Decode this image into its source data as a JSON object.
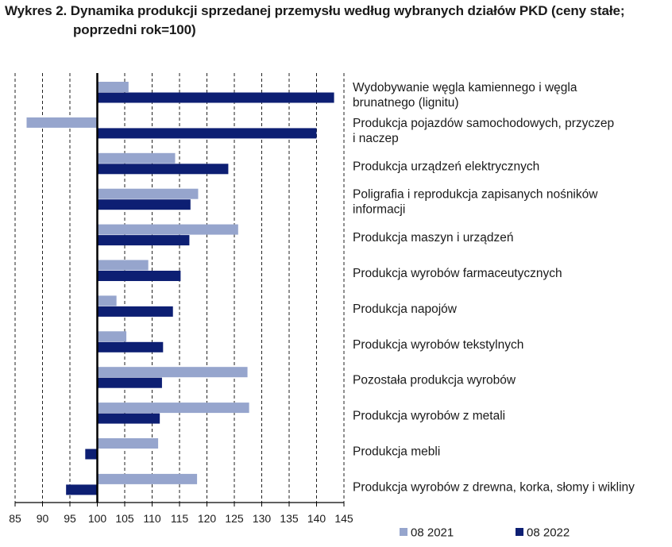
{
  "title_line1": "Wykres 2. Dynamika produkcji sprzedanej przemysłu według wybranych działów PKD (ceny stałe;",
  "title_line2": "poprzedni rok=100)",
  "colors": {
    "series_2021": "#96a5cd",
    "series_2022": "#0d1f73",
    "grid": "#222222",
    "axis": "#000000"
  },
  "chart_data": {
    "type": "bar",
    "orientation": "horizontal",
    "title": "Wykres 2. Dynamika produkcji sprzedanej przemysłu według wybranych działów PKD (ceny stałe; poprzedni rok=100)",
    "baseline": 100,
    "xlim": [
      85,
      145
    ],
    "xticks": [
      85,
      90,
      95,
      100,
      105,
      110,
      115,
      120,
      125,
      130,
      135,
      140,
      145
    ],
    "grid": "vertical dashed",
    "legend_position": "bottom",
    "categories": [
      [
        "Wydobywanie węgla kamiennego i węgla",
        "brunatnego (lignitu)"
      ],
      [
        "Produkcja pojazdów samochodowych, przyczep",
        "i naczep"
      ],
      [
        "Produkcja urządzeń elektrycznych"
      ],
      [
        "Poligrafia i reprodukcja zapisanych nośników",
        "informacji"
      ],
      [
        "Produkcja maszyn i urządzeń"
      ],
      [
        "Produkcja wyrobów farmaceutycznych"
      ],
      [
        "Produkcja napojów"
      ],
      [
        "Produkcja wyrobów tekstylnych"
      ],
      [
        "Pozostała produkcja wyrobów"
      ],
      [
        "Produkcja wyrobów z metali"
      ],
      [
        "Produkcja mebli"
      ],
      [
        "Produkcja wyrobów z drewna, korka, słomy i wikliny"
      ]
    ],
    "series": [
      {
        "name": "08 2021",
        "values": [
          105.7,
          87.1,
          114.2,
          118.4,
          125.7,
          109.3,
          103.5,
          105.3,
          127.4,
          127.7,
          111.1,
          118.2
        ]
      },
      {
        "name": "08 2022",
        "values": [
          143.2,
          140.0,
          123.9,
          117.0,
          116.8,
          115.2,
          113.8,
          112.0,
          111.8,
          111.4,
          97.8,
          94.3
        ]
      }
    ]
  }
}
